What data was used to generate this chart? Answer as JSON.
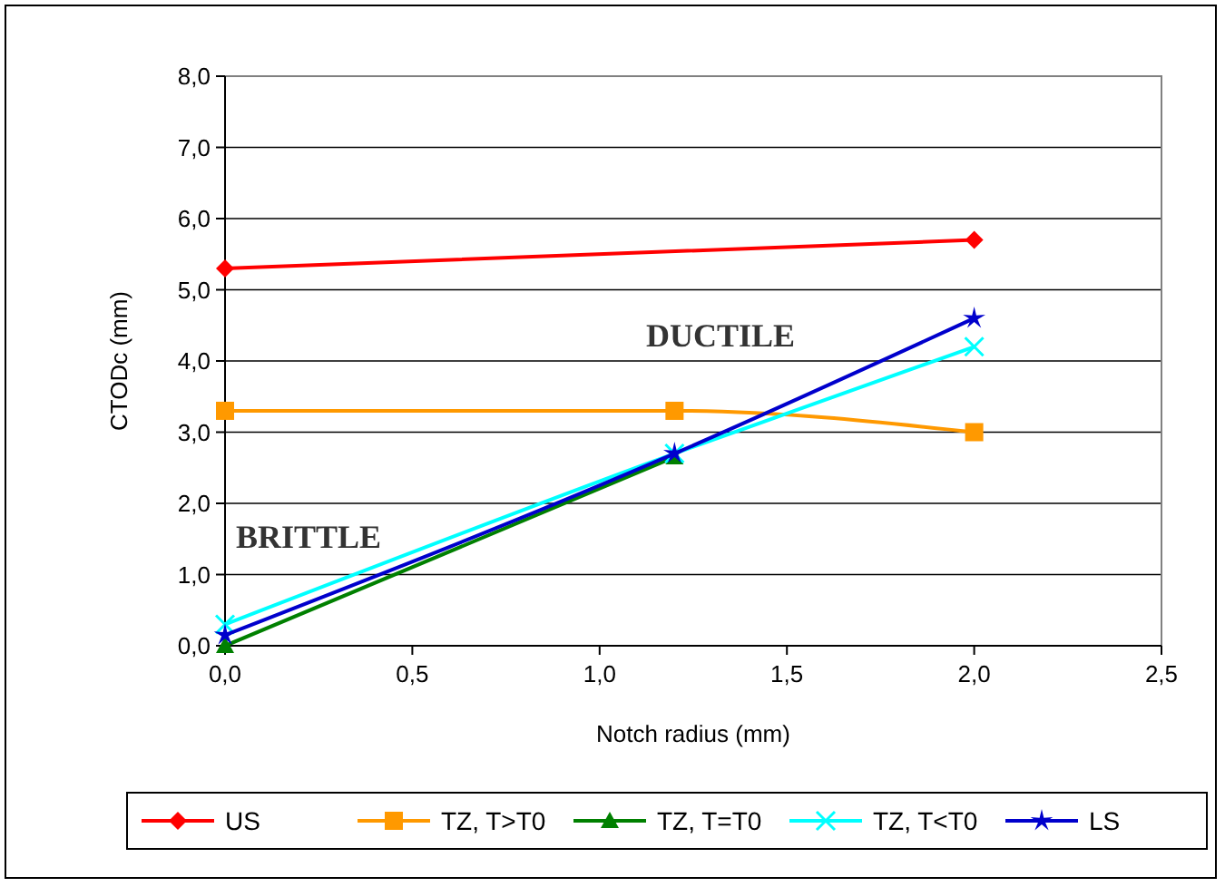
{
  "chart_data": {
    "type": "line",
    "xlabel": "Notch radius (mm)",
    "ylabel": "CTODc (mm)",
    "xlim": [
      0,
      2.5
    ],
    "xticks": [
      {
        "value": 0,
        "label": "0,0"
      },
      {
        "value": 0.5,
        "label": "0,5"
      },
      {
        "value": 1,
        "label": "1,0"
      },
      {
        "value": 1.5,
        "label": "1,5"
      },
      {
        "value": 2,
        "label": "2,0"
      },
      {
        "value": 2.5,
        "label": "2,5"
      }
    ],
    "ylim": [
      0,
      8
    ],
    "yticks": [
      {
        "value": 0,
        "label": "0,0"
      },
      {
        "value": 1,
        "label": "1,0"
      },
      {
        "value": 2,
        "label": "2,0"
      },
      {
        "value": 3,
        "label": "3,0"
      },
      {
        "value": 4,
        "label": "4,0"
      },
      {
        "value": 5,
        "label": "5,0"
      },
      {
        "value": 6,
        "label": "6,0"
      },
      {
        "value": 7,
        "label": "7,0"
      },
      {
        "value": 8,
        "label": "8,0"
      }
    ],
    "grid": "y",
    "legend": "bottom",
    "line_style": "solid",
    "x": [
      0,
      1.2,
      2
    ],
    "series": [
      {
        "name": "US",
        "color": "#ff0000",
        "marker": "diamond",
        "x": [
          0,
          2
        ],
        "values": [
          5.3,
          5.7
        ]
      },
      {
        "name": "TZ, T>T0",
        "color": "#ff9900",
        "marker": "square",
        "values": [
          3.3,
          3.3,
          3.0
        ]
      },
      {
        "name": "TZ, T=T0",
        "color": "#008000",
        "marker": "triangle",
        "values": [
          0.0,
          2.65,
          null
        ]
      },
      {
        "name": "TZ, T<T0",
        "color": "#00ffff",
        "marker": "cross",
        "values": [
          0.3,
          2.7,
          4.2
        ]
      },
      {
        "name": "LS",
        "color": "#0000cc",
        "marker": "star",
        "values": [
          0.15,
          2.7,
          4.6
        ]
      }
    ],
    "annotations": [
      "DUCTILE",
      "BRITTLE"
    ]
  }
}
